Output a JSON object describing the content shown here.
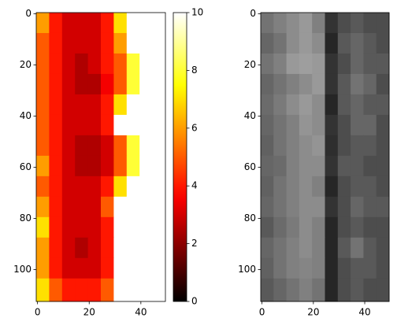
{
  "chart_data": [
    {
      "type": "heatmap",
      "colormap": "hot",
      "xbins": [
        -0.5,
        4.5,
        9.5,
        14.5,
        19.5,
        24.5,
        29.5,
        34.5,
        39.5,
        44.5,
        49.5
      ],
      "ybins": [
        -0.5,
        7.5,
        15.5,
        23.5,
        31.5,
        39.5,
        47.5,
        55.5,
        63.5,
        71.5,
        79.5,
        87.5,
        95.5,
        103.5,
        112.5
      ],
      "values": [
        [
          6,
          4,
          3,
          3,
          3,
          4,
          7,
          10,
          10,
          10
        ],
        [
          5,
          4,
          3,
          3,
          3,
          4,
          6,
          10,
          10,
          10
        ],
        [
          5,
          4,
          3,
          2.5,
          3,
          4,
          5,
          8,
          10,
          10
        ],
        [
          5,
          4,
          3,
          2.5,
          2.5,
          3.5,
          5,
          8,
          10,
          10
        ],
        [
          5,
          4,
          3,
          3,
          3,
          4,
          7,
          10,
          10,
          10
        ],
        [
          5,
          4,
          3,
          3,
          3,
          4,
          10,
          10,
          10,
          10
        ],
        [
          5,
          4,
          3,
          2.5,
          2.5,
          3,
          5,
          8,
          10,
          10
        ],
        [
          6,
          4,
          3,
          2.5,
          2.5,
          3,
          5,
          8,
          10,
          10
        ],
        [
          5,
          4,
          3,
          3,
          3,
          4,
          7,
          10,
          10,
          10
        ],
        [
          6,
          4,
          3,
          3,
          3,
          5,
          10,
          10,
          10,
          10
        ],
        [
          7,
          4,
          3,
          3,
          3,
          4,
          10,
          10,
          10,
          10
        ],
        [
          6,
          4,
          3,
          2.5,
          3,
          4,
          10,
          10,
          10,
          10
        ],
        [
          6,
          4,
          3,
          3,
          3,
          4,
          10,
          10,
          10,
          10
        ],
        [
          7,
          5,
          4,
          4,
          4,
          5,
          10,
          10,
          10,
          10
        ]
      ],
      "clim": [
        0,
        10
      ],
      "cticks": [
        0,
        2,
        4,
        6,
        8,
        10
      ],
      "xlim": [
        -0.5,
        49.5
      ],
      "ylim": [
        112.5,
        -0.5
      ],
      "xticks": [
        0,
        20,
        40
      ],
      "yticks": [
        0,
        20,
        40,
        60,
        80,
        100
      ]
    },
    {
      "type": "heatmap",
      "colormap": "gray",
      "xbins": [
        -0.5,
        4.5,
        9.5,
        14.5,
        19.5,
        24.5,
        29.5,
        34.5,
        39.5,
        44.5,
        49.5
      ],
      "ybins": [
        -0.5,
        7.5,
        15.5,
        23.5,
        31.5,
        39.5,
        47.5,
        55.5,
        63.5,
        71.5,
        79.5,
        87.5,
        95.5,
        103.5,
        112.5
      ],
      "values": [
        [
          0.45,
          0.5,
          0.55,
          0.6,
          0.5,
          0.2,
          0.3,
          0.35,
          0.3,
          0.3
        ],
        [
          0.4,
          0.45,
          0.55,
          0.6,
          0.55,
          0.15,
          0.35,
          0.4,
          0.35,
          0.3
        ],
        [
          0.45,
          0.5,
          0.6,
          0.62,
          0.6,
          0.2,
          0.3,
          0.4,
          0.35,
          0.35
        ],
        [
          0.4,
          0.45,
          0.5,
          0.55,
          0.6,
          0.2,
          0.35,
          0.45,
          0.4,
          0.3
        ],
        [
          0.42,
          0.48,
          0.55,
          0.6,
          0.55,
          0.15,
          0.35,
          0.4,
          0.35,
          0.35
        ],
        [
          0.4,
          0.45,
          0.5,
          0.58,
          0.55,
          0.2,
          0.3,
          0.4,
          0.4,
          0.3
        ],
        [
          0.38,
          0.45,
          0.5,
          0.55,
          0.58,
          0.18,
          0.3,
          0.35,
          0.35,
          0.3
        ],
        [
          0.4,
          0.42,
          0.5,
          0.55,
          0.55,
          0.2,
          0.35,
          0.35,
          0.3,
          0.3
        ],
        [
          0.38,
          0.45,
          0.5,
          0.55,
          0.5,
          0.15,
          0.3,
          0.35,
          0.35,
          0.3
        ],
        [
          0.4,
          0.45,
          0.5,
          0.55,
          0.55,
          0.2,
          0.3,
          0.4,
          0.35,
          0.35
        ],
        [
          0.35,
          0.42,
          0.48,
          0.55,
          0.5,
          0.15,
          0.3,
          0.35,
          0.3,
          0.3
        ],
        [
          0.4,
          0.45,
          0.5,
          0.55,
          0.5,
          0.15,
          0.35,
          0.45,
          0.35,
          0.3
        ],
        [
          0.38,
          0.45,
          0.5,
          0.52,
          0.5,
          0.15,
          0.3,
          0.35,
          0.35,
          0.3
        ],
        [
          0.35,
          0.4,
          0.45,
          0.5,
          0.45,
          0.15,
          0.3,
          0.35,
          0.3,
          0.3
        ]
      ],
      "clim": [
        0,
        1
      ],
      "xlim": [
        -0.5,
        49.5
      ],
      "ylim": [
        112.5,
        -0.5
      ],
      "xticks": [
        0,
        20,
        40
      ],
      "yticks": [
        0,
        20,
        40,
        60,
        80,
        100
      ]
    }
  ]
}
